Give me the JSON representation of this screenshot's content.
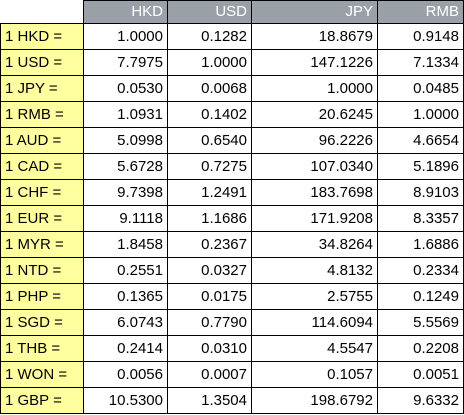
{
  "colors": {
    "header_bg": "#9aa0a8",
    "header_text": "#ffffff",
    "row_label_bg": "#ffffa0",
    "grid_line": "#000000"
  },
  "table": {
    "columns": [
      "HKD",
      "USD",
      "JPY",
      "RMB"
    ],
    "rows": [
      {
        "label": "1 HKD =",
        "values": [
          "1.0000",
          "0.1282",
          "18.8679",
          "0.9148"
        ]
      },
      {
        "label": "1 USD =",
        "values": [
          "7.7975",
          "1.0000",
          "147.1226",
          "7.1334"
        ]
      },
      {
        "label": "1 JPY =",
        "values": [
          "0.0530",
          "0.0068",
          "1.0000",
          "0.0485"
        ]
      },
      {
        "label": "1 RMB =",
        "values": [
          "1.0931",
          "0.1402",
          "20.6245",
          "1.0000"
        ]
      },
      {
        "label": "1 AUD =",
        "values": [
          "5.0998",
          "0.6540",
          "96.2226",
          "4.6654"
        ]
      },
      {
        "label": "1 CAD =",
        "values": [
          "5.6728",
          "0.7275",
          "107.0340",
          "5.1896"
        ]
      },
      {
        "label": "1 CHF =",
        "values": [
          "9.7398",
          "1.2491",
          "183.7698",
          "8.9103"
        ]
      },
      {
        "label": "1 EUR =",
        "values": [
          "9.1118",
          "1.1686",
          "171.9208",
          "8.3357"
        ]
      },
      {
        "label": "1 MYR =",
        "values": [
          "1.8458",
          "0.2367",
          "34.8264",
          "1.6886"
        ]
      },
      {
        "label": "1 NTD =",
        "values": [
          "0.2551",
          "0.0327",
          "4.8132",
          "0.2334"
        ]
      },
      {
        "label": "1 PHP =",
        "values": [
          "0.1365",
          "0.0175",
          "2.5755",
          "0.1249"
        ]
      },
      {
        "label": "1 SGD =",
        "values": [
          "6.0743",
          "0.7790",
          "114.6094",
          "5.5569"
        ]
      },
      {
        "label": "1 THB =",
        "values": [
          "0.2414",
          "0.0310",
          "4.5547",
          "0.2208"
        ]
      },
      {
        "label": "1 WON =",
        "values": [
          "0.0056",
          "0.0007",
          "0.1057",
          "0.0051"
        ]
      },
      {
        "label": "1 GBP =",
        "values": [
          "10.5300",
          "1.3504",
          "198.6792",
          "9.6332"
        ]
      }
    ]
  }
}
